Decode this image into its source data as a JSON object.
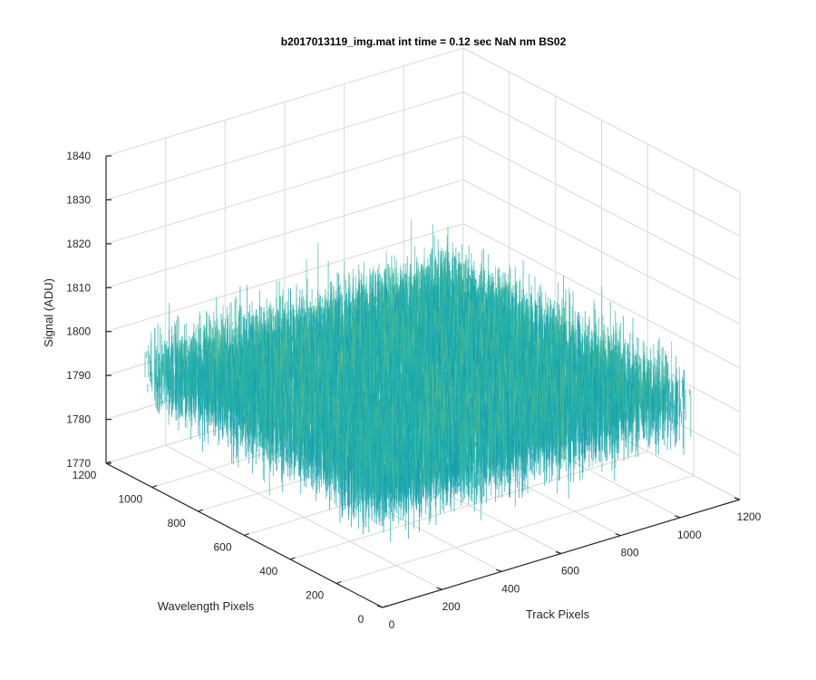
{
  "chart_data": {
    "type": "surface",
    "title": "b2017013119_img.mat int time = 0.12 sec  NaN nm BS02",
    "xlabel": "Track Pixels",
    "ylabel": "Wavelength Pixels",
    "zlabel": "Signal (ADU)",
    "xlim": [
      0,
      1200
    ],
    "ylim": [
      0,
      1200
    ],
    "zlim": [
      1770,
      1840
    ],
    "x_ticks": [
      "0",
      "200",
      "400",
      "600",
      "800",
      "1000",
      "1200"
    ],
    "y_ticks": [
      "0",
      "200",
      "400",
      "600",
      "800",
      "1000",
      "1200"
    ],
    "z_ticks": [
      "1770",
      "1780",
      "1790",
      "1800",
      "1810",
      "1820",
      "1830",
      "1840"
    ],
    "data_extent": {
      "x": [
        0,
        1024
      ],
      "y": [
        0,
        1024
      ]
    },
    "signal_mean": 1796,
    "signal_typical_range": [
      1780,
      1815
    ],
    "grid": true,
    "colormap": "parula",
    "colors": {
      "low": "#0072bd",
      "mid": "#20b2aa",
      "high": "#e8d44d"
    }
  }
}
